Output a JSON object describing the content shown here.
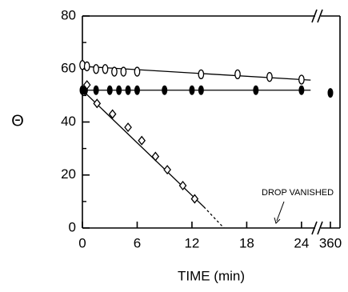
{
  "chart_data": {
    "type": "scatter",
    "xlabel": "TIME (min)",
    "ylabel": "Θ",
    "xlim": [
      0,
      25.5
    ],
    "xticks": [
      0,
      6,
      12,
      18,
      24
    ],
    "x_break": {
      "xlim": [
        355,
        365
      ],
      "xticks": [
        360
      ]
    },
    "ylim": [
      0,
      80
    ],
    "yticks": [
      0,
      20,
      40,
      60,
      80
    ],
    "yminor_ticks": [
      10,
      30,
      50,
      70
    ],
    "series": [
      {
        "marker": "open-ellipse",
        "color": "#000000",
        "x": [
          0,
          0.5,
          1.5,
          2.5,
          3.5,
          4.5,
          6,
          13,
          17,
          20.5,
          24
        ],
        "values": [
          61.5,
          61,
          60,
          60,
          59,
          59,
          59,
          58,
          58,
          57,
          56
        ],
        "fit": {
          "x": [
            0,
            25
          ],
          "y": [
            61,
            55.8
          ]
        }
      },
      {
        "marker": "filled-ellipse",
        "color": "#000000",
        "x": [
          0,
          0.3,
          1.5,
          3,
          4,
          5,
          6,
          9,
          12,
          13,
          19,
          24,
          360
        ],
        "values": [
          52,
          52,
          52,
          52,
          52,
          52,
          52,
          52,
          52,
          52,
          52,
          52,
          51
        ],
        "fit": {
          "x": [
            0,
            25
          ],
          "y": [
            52,
            52
          ]
        }
      },
      {
        "marker": "open-diamond",
        "color": "#000000",
        "x": [
          0.5,
          1.6,
          3.3,
          5,
          6.5,
          8,
          9.3,
          11,
          12.3
        ],
        "values": [
          54,
          47,
          43,
          38,
          33,
          27,
          22,
          16,
          11
        ],
        "fit": {
          "x": [
            0,
            13.3
          ],
          "y": [
            52,
            8
          ]
        },
        "extension": {
          "x": [
            13.3,
            15.5
          ],
          "y": [
            8,
            0
          ]
        }
      }
    ],
    "annotation": "DROP VANISHED"
  }
}
